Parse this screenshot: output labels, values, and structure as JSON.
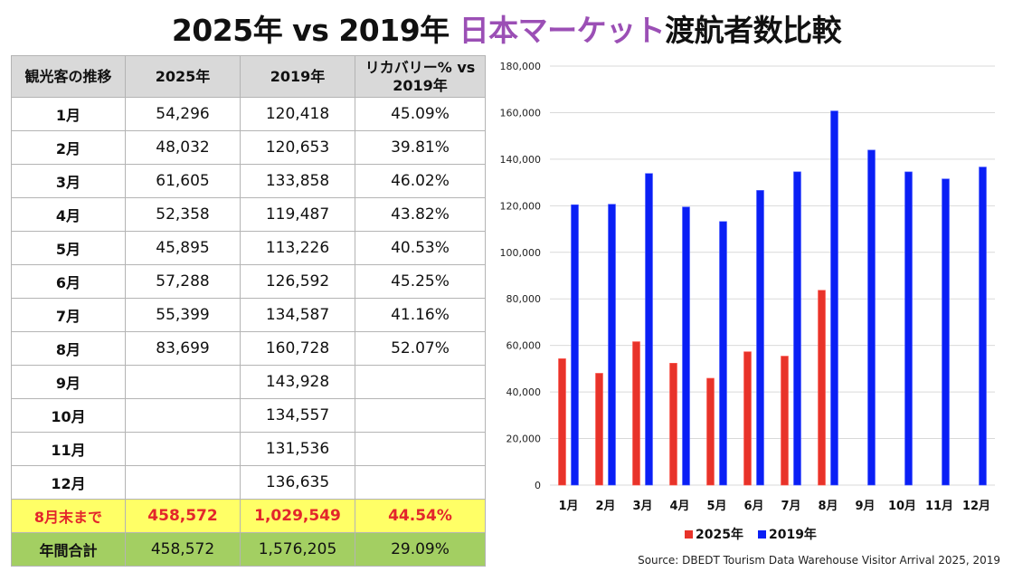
{
  "title": {
    "part1": "2025年 vs 2019年 ",
    "accent": "日本マーケット",
    "part2": "渡航者数比較",
    "accent_color": "#9b4fb5"
  },
  "table": {
    "headers": [
      "観光客の推移",
      "2025年",
      "2019年",
      "リカバリー% vs 2019年"
    ],
    "rows": [
      {
        "month": "1月",
        "y2025": "54,296",
        "y2019": "120,418",
        "recovery": "45.09%"
      },
      {
        "month": "2月",
        "y2025": "48,032",
        "y2019": "120,653",
        "recovery": "39.81%"
      },
      {
        "month": "3月",
        "y2025": "61,605",
        "y2019": "133,858",
        "recovery": "46.02%"
      },
      {
        "month": "4月",
        "y2025": "52,358",
        "y2019": "119,487",
        "recovery": "43.82%"
      },
      {
        "month": "5月",
        "y2025": "45,895",
        "y2019": "113,226",
        "recovery": "40.53%"
      },
      {
        "month": "6月",
        "y2025": "57,288",
        "y2019": "126,592",
        "recovery": "45.25%"
      },
      {
        "month": "7月",
        "y2025": "55,399",
        "y2019": "134,587",
        "recovery": "41.16%"
      },
      {
        "month": "8月",
        "y2025": "83,699",
        "y2019": "160,728",
        "recovery": "52.07%"
      },
      {
        "month": "9月",
        "y2025": "",
        "y2019": "143,928",
        "recovery": ""
      },
      {
        "month": "10月",
        "y2025": "",
        "y2019": "134,557",
        "recovery": ""
      },
      {
        "month": "11月",
        "y2025": "",
        "y2019": "131,536",
        "recovery": ""
      },
      {
        "month": "12月",
        "y2025": "",
        "y2019": "136,635",
        "recovery": ""
      }
    ],
    "subtotal": {
      "label": "8月末まで",
      "y2025": "458,572",
      "y2019": "1,029,549",
      "recovery": "44.54%"
    },
    "total": {
      "label": "年間合計",
      "y2025": "458,572",
      "y2019": "1,576,205",
      "recovery": "29.09%"
    },
    "colors": {
      "header_bg": "#d9d9d9",
      "subtotal_bg": "#ffff66",
      "subtotal_text": "#e3262b",
      "total_bg": "#a3cf62"
    }
  },
  "chart_data": {
    "type": "bar",
    "title": "",
    "xlabel": "",
    "ylabel": "",
    "categories": [
      "1月",
      "2月",
      "3月",
      "4月",
      "5月",
      "6月",
      "7月",
      "8月",
      "9月",
      "10月",
      "11月",
      "12月"
    ],
    "series": [
      {
        "name": "2025年",
        "color": "#e8332a",
        "values": [
          54296,
          48032,
          61605,
          52358,
          45895,
          57288,
          55399,
          83699,
          null,
          null,
          null,
          null
        ]
      },
      {
        "name": "2019年",
        "color": "#0a1ff5",
        "values": [
          120418,
          120653,
          133858,
          119487,
          113226,
          126592,
          134587,
          160728,
          143928,
          134557,
          131536,
          136635
        ]
      }
    ],
    "ylim": [
      0,
      180000
    ],
    "yticks": [
      0,
      20000,
      40000,
      60000,
      80000,
      100000,
      120000,
      140000,
      160000,
      180000
    ],
    "ytick_labels": [
      "0",
      "20,000",
      "40,000",
      "60,000",
      "80,000",
      "100,000",
      "120,000",
      "140,000",
      "160,000",
      "180,000"
    ],
    "grid": true,
    "legend": "bottom"
  },
  "legend": {
    "items": [
      {
        "label": "2025年",
        "color": "#e8332a"
      },
      {
        "label": "2019年",
        "color": "#0a1ff5"
      }
    ]
  },
  "source": "Source: DBEDT Tourism Data Warehouse Visitor Arrival 2025, 2019"
}
